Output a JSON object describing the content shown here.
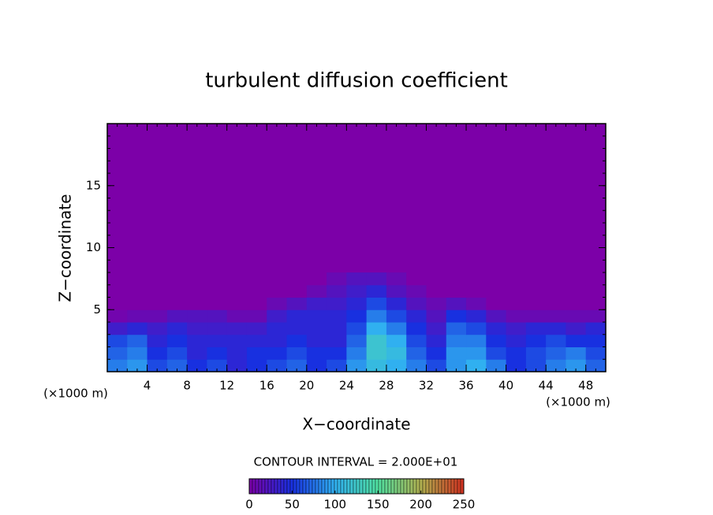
{
  "chart_data": {
    "type": "heatmap",
    "title": "turbulent diffusion coefficient",
    "x_label": "X−coordinate",
    "y_label": "Z−coordinate",
    "x_unit_left": "(×1000 m)",
    "x_unit_right": "(×1000 m)",
    "xlim": [
      0,
      50
    ],
    "ylim": [
      0,
      20
    ],
    "xticks": [
      4,
      8,
      12,
      16,
      20,
      24,
      28,
      32,
      36,
      40,
      44,
      48
    ],
    "yticks": [
      5,
      10,
      15
    ],
    "x": [
      1,
      3,
      5,
      7,
      9,
      11,
      13,
      15,
      17,
      19,
      21,
      23,
      25,
      27,
      29,
      31,
      33,
      35,
      37,
      39,
      41,
      43,
      45,
      47,
      49
    ],
    "y": [
      0.5,
      1.5,
      2.5,
      3.5,
      4.5,
      5.5,
      6.5,
      7.5
    ],
    "values": [
      [
        80,
        90,
        60,
        70,
        50,
        60,
        40,
        50,
        60,
        70,
        50,
        60,
        90,
        110,
        100,
        80,
        60,
        90,
        100,
        80,
        50,
        60,
        80,
        90,
        70
      ],
      [
        70,
        80,
        50,
        60,
        40,
        50,
        40,
        50,
        50,
        60,
        50,
        50,
        80,
        120,
        110,
        70,
        50,
        90,
        90,
        60,
        50,
        60,
        70,
        80,
        60
      ],
      [
        60,
        70,
        40,
        50,
        40,
        40,
        40,
        40,
        40,
        50,
        40,
        40,
        70,
        120,
        100,
        60,
        40,
        80,
        80,
        50,
        40,
        50,
        60,
        50,
        50
      ],
      [
        30,
        40,
        30,
        40,
        30,
        30,
        30,
        30,
        40,
        40,
        40,
        40,
        60,
        100,
        80,
        50,
        30,
        70,
        60,
        40,
        30,
        40,
        40,
        30,
        40
      ],
      [
        5,
        10,
        10,
        20,
        20,
        20,
        10,
        10,
        30,
        40,
        40,
        40,
        50,
        80,
        60,
        40,
        20,
        50,
        40,
        20,
        10,
        10,
        10,
        10,
        10
      ],
      [
        0,
        0,
        0,
        0,
        0,
        0,
        0,
        0,
        10,
        20,
        30,
        30,
        40,
        60,
        40,
        20,
        10,
        20,
        10,
        0,
        0,
        0,
        0,
        0,
        0
      ],
      [
        0,
        0,
        0,
        0,
        0,
        0,
        0,
        0,
        0,
        0,
        10,
        20,
        30,
        40,
        20,
        10,
        0,
        0,
        0,
        0,
        0,
        0,
        0,
        0,
        0
      ],
      [
        0,
        0,
        0,
        0,
        0,
        0,
        0,
        0,
        0,
        0,
        0,
        10,
        20,
        20,
        10,
        0,
        0,
        0,
        0,
        0,
        0,
        0,
        0,
        0,
        0
      ]
    ],
    "contour_interval_label": "CONTOUR INTERVAL = 2.000E+01",
    "colorbar_lim": [
      0,
      250
    ],
    "colorbar_ticks": [
      0,
      50,
      100,
      150,
      200,
      250
    ],
    "colors": [
      "#7c00a8",
      "#1830e0",
      "#30b0f0",
      "#50e0a0",
      "#b0b050",
      "#d03020"
    ]
  }
}
